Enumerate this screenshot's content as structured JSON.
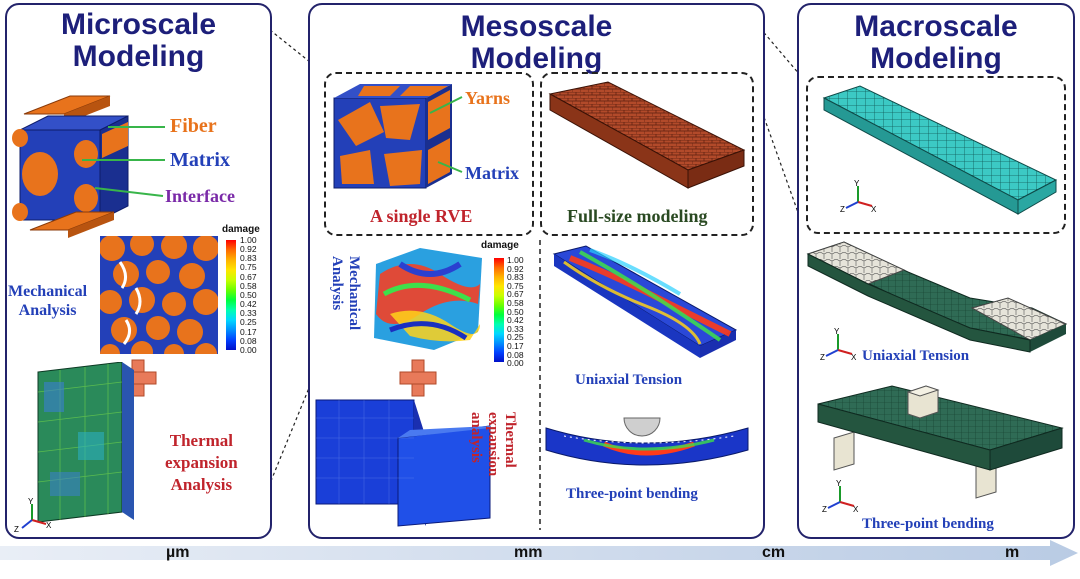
{
  "panels": {
    "micro_title": "Microscale\nModeling",
    "meso_title": "Mesoscale\nModeling",
    "macro_title": "Macroscale\nModeling"
  },
  "micro": {
    "fiber": "Fiber",
    "matrix": "Matrix",
    "interface": "Interface",
    "mechanical": "Mechanical\nAnalysis",
    "thermal": "Thermal\nexpansion\nAnalysis",
    "damage": "damage"
  },
  "meso": {
    "yarns": "Yarns",
    "matrix": "Matrix",
    "single_rve": "A single RVE",
    "full_size": "Full-size modeling",
    "mechanical": "Mechanical\nAnalysis",
    "thermal": "Thermal\nexpansion\nanalysis",
    "uniaxial": "Uniaxial Tension",
    "three_point": "Three-point bending",
    "damage": "damage"
  },
  "macro": {
    "uniaxial": "Uniaxial Tension",
    "three_point": "Three-point bending"
  },
  "colorbar_ticks": [
    "1.00",
    "0.92",
    "0.83",
    "0.75",
    "0.67",
    "0.58",
    "0.50",
    "0.42",
    "0.33",
    "0.25",
    "0.17",
    "0.08",
    "0.00"
  ],
  "scale_axis": [
    "µm",
    "mm",
    "cm",
    "m"
  ],
  "colors": {
    "panel_border": "#23236b",
    "title": "#1d1f7a",
    "fiber_orange": "#e8731c",
    "matrix_blue": "#2340b8",
    "mesh_teal": "#3cc9c4",
    "mesh_green": "#2f6b55",
    "brick": "#b24a2a"
  }
}
